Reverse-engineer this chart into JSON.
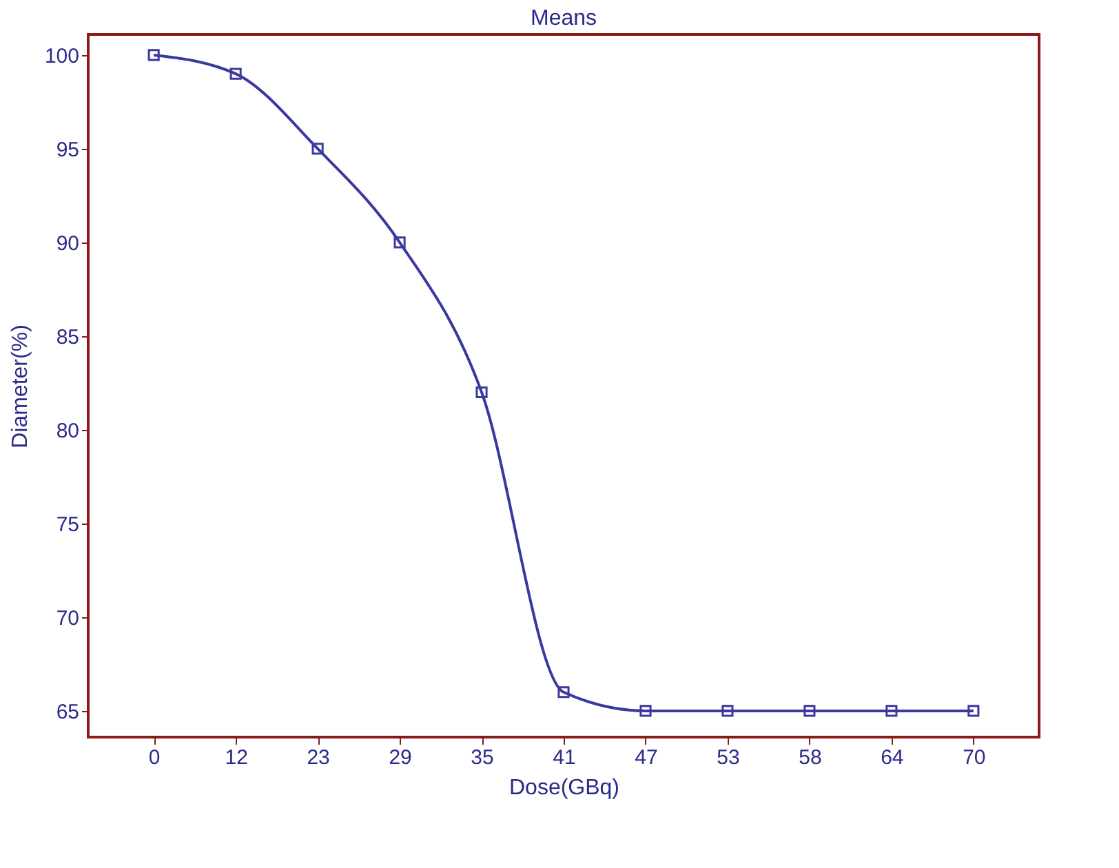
{
  "chart_data": {
    "type": "line",
    "title": "Means",
    "xlabel": "Dose(GBq)",
    "ylabel": "Diameter(%)",
    "categories": [
      "0",
      "12",
      "23",
      "29",
      "35",
      "41",
      "47",
      "53",
      "58",
      "64",
      "70"
    ],
    "series": [
      {
        "color": "#3a3a9e",
        "values": [
          100,
          99,
          95,
          90,
          82,
          66,
          65,
          65,
          65,
          65,
          65
        ]
      }
    ],
    "ylim": [
      63.6,
      101.1
    ],
    "yticks": [
      65,
      70,
      75,
      80,
      85,
      90,
      95,
      100
    ],
    "marker": "square",
    "line_style": "solid",
    "grid": false
  }
}
